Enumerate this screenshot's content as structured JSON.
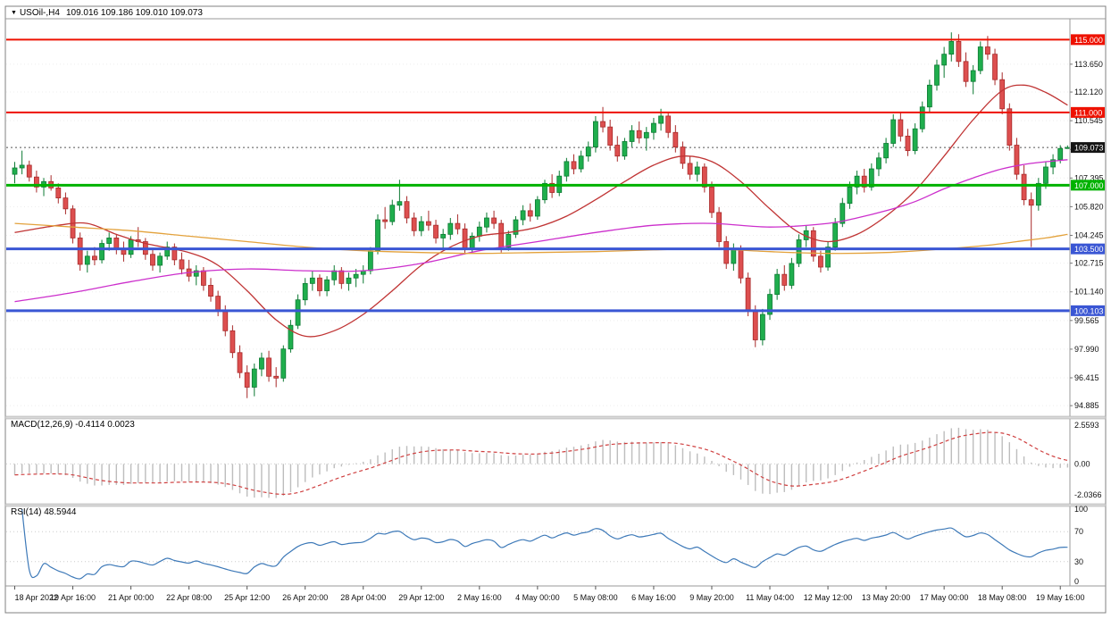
{
  "header": {
    "symbol_period": "USOil-,H4",
    "ohlc": "109.016 109.186 109.010 109.073"
  },
  "colors": {
    "bull": "#1fae4d",
    "bull_border": "#0d7a33",
    "bear": "#dd4f4f",
    "bear_border": "#a82a2a",
    "ma_fast": "#c03434",
    "ma_mid": "#cc2fcc",
    "ma_slow": "#e3a23c",
    "line_red": "#ee1100",
    "line_green": "#00b200",
    "line_blue": "#3a56d4",
    "price_label_bg": "#141414",
    "macd_hist": "#bdbdbd",
    "macd_signal": "#cf4040",
    "rsi_line": "#3d79b8",
    "grid": "#ededed",
    "axis_text": "#111111",
    "frame": "#808080"
  },
  "chart_data": {
    "type": "candlestick",
    "symbol": "USOil-",
    "timeframe": "H4",
    "bars_per_label": 8,
    "x_labels": [
      "18 Apr 2022",
      "19 Apr 16:00",
      "21 Apr 00:00",
      "22 Apr 08:00",
      "25 Apr 12:00",
      "26 Apr 20:00",
      "28 Apr 04:00",
      "29 Apr 12:00",
      "2 May 16:00",
      "4 May 00:00",
      "5 May 08:00",
      "6 May 16:00",
      "9 May 20:00",
      "11 May 04:00",
      "12 May 12:00",
      "13 May 20:00",
      "17 May 00:00",
      "18 May 08:00",
      "19 May 16:00"
    ],
    "price_axis": {
      "min": 94.5,
      "max": 116.0,
      "tick_labels": [
        "113.650",
        "112.120",
        "110.545",
        "108.970",
        "107.395",
        "105.820",
        "104.245",
        "102.715",
        "101.140",
        "99.565",
        "97.990",
        "96.415",
        "94.885"
      ]
    },
    "current_price": {
      "value": 109.073,
      "label": "109.073"
    },
    "current_bar": {
      "open": 109.016,
      "high": 109.186,
      "low": 109.01,
      "close": 109.073
    },
    "horizontal_lines": [
      {
        "price": 115.0,
        "label": "115.000",
        "color": "#ee1100",
        "width": 2
      },
      {
        "price": 111.0,
        "label": "111.000",
        "color": "#ee1100",
        "width": 2
      },
      {
        "price": 107.0,
        "label": "107.000",
        "color": "#00b200",
        "width": 3
      },
      {
        "price": 103.5,
        "label": "103.500",
        "color": "#3a56d4",
        "width": 3
      },
      {
        "price": 100.103,
        "label": "100.103",
        "color": "#3a56d4",
        "width": 3
      }
    ],
    "candles": [
      [
        107.6,
        108.28,
        107.1,
        107.95
      ],
      [
        107.95,
        108.9,
        107.6,
        108.1
      ],
      [
        108.1,
        108.35,
        107.2,
        107.45
      ],
      [
        107.45,
        107.8,
        106.6,
        106.9
      ],
      [
        106.9,
        107.4,
        106.4,
        107.2
      ],
      [
        107.2,
        107.55,
        106.7,
        106.85
      ],
      [
        106.85,
        107.1,
        106.0,
        106.3
      ],
      [
        106.3,
        106.6,
        105.4,
        105.7
      ],
      [
        105.7,
        105.9,
        103.8,
        104.1
      ],
      [
        104.1,
        104.4,
        102.3,
        102.65
      ],
      [
        102.65,
        103.4,
        102.2,
        103.1
      ],
      [
        103.1,
        103.6,
        102.6,
        102.9
      ],
      [
        102.9,
        104.0,
        102.7,
        103.8
      ],
      [
        103.8,
        104.4,
        103.4,
        104.1
      ],
      [
        104.1,
        104.3,
        103.2,
        103.5
      ],
      [
        103.5,
        103.9,
        102.8,
        103.2
      ],
      [
        103.2,
        104.2,
        103.0,
        104.0
      ],
      [
        104.0,
        104.7,
        103.6,
        103.9
      ],
      [
        103.9,
        104.1,
        102.9,
        103.2
      ],
      [
        103.2,
        103.5,
        102.3,
        102.6
      ],
      [
        102.6,
        103.3,
        102.2,
        103.1
      ],
      [
        103.1,
        103.9,
        102.9,
        103.6
      ],
      [
        103.6,
        103.8,
        102.6,
        102.9
      ],
      [
        102.9,
        103.3,
        102.1,
        102.4
      ],
      [
        102.4,
        102.9,
        101.7,
        102.0
      ],
      [
        102.0,
        102.6,
        101.5,
        102.3
      ],
      [
        102.3,
        102.5,
        101.2,
        101.5
      ],
      [
        101.5,
        101.9,
        100.6,
        100.9
      ],
      [
        100.9,
        101.2,
        99.8,
        100.1
      ],
      [
        100.1,
        100.4,
        98.7,
        99.0
      ],
      [
        99.0,
        99.3,
        97.5,
        97.8
      ],
      [
        97.8,
        98.2,
        96.4,
        96.7
      ],
      [
        96.7,
        97.1,
        95.3,
        95.9
      ],
      [
        95.9,
        97.2,
        95.4,
        96.9
      ],
      [
        96.9,
        97.8,
        96.5,
        97.5
      ],
      [
        97.5,
        97.9,
        96.2,
        96.5
      ],
      [
        96.5,
        97.0,
        95.9,
        96.4
      ],
      [
        96.4,
        98.2,
        96.2,
        98.0
      ],
      [
        98.0,
        99.6,
        97.8,
        99.3
      ],
      [
        99.3,
        101.0,
        99.1,
        100.7
      ],
      [
        100.7,
        101.9,
        100.4,
        101.6
      ],
      [
        101.6,
        102.3,
        101.2,
        101.9
      ],
      [
        101.9,
        102.1,
        100.9,
        101.2
      ],
      [
        101.2,
        102.0,
        100.9,
        101.8
      ],
      [
        101.8,
        102.6,
        101.5,
        102.3
      ],
      [
        102.3,
        102.5,
        101.3,
        101.6
      ],
      [
        101.6,
        102.2,
        101.2,
        101.9
      ],
      [
        101.9,
        102.4,
        101.4,
        102.1
      ],
      [
        102.1,
        102.6,
        101.6,
        102.3
      ],
      [
        102.3,
        103.6,
        102.1,
        103.4
      ],
      [
        103.4,
        105.4,
        103.2,
        105.1
      ],
      [
        105.1,
        105.8,
        104.6,
        105.0
      ],
      [
        105.0,
        106.2,
        104.8,
        105.9
      ],
      [
        105.9,
        107.3,
        105.6,
        106.1
      ],
      [
        106.1,
        106.4,
        104.9,
        105.2
      ],
      [
        105.2,
        105.5,
        104.2,
        104.5
      ],
      [
        104.5,
        105.3,
        104.2,
        105.0
      ],
      [
        105.0,
        105.6,
        104.5,
        104.8
      ],
      [
        104.8,
        105.1,
        103.8,
        104.1
      ],
      [
        104.1,
        104.6,
        103.5,
        104.3
      ],
      [
        104.3,
        105.2,
        104.0,
        104.9
      ],
      [
        104.9,
        105.4,
        104.3,
        104.6
      ],
      [
        104.6,
        104.9,
        103.2,
        103.5
      ],
      [
        103.5,
        104.4,
        103.3,
        104.2
      ],
      [
        104.2,
        105.0,
        103.9,
        104.7
      ],
      [
        104.7,
        105.5,
        104.4,
        105.2
      ],
      [
        105.2,
        105.6,
        104.6,
        104.9
      ],
      [
        104.9,
        105.1,
        103.3,
        103.6
      ],
      [
        103.6,
        104.5,
        103.4,
        104.3
      ],
      [
        104.3,
        105.3,
        104.1,
        105.1
      ],
      [
        105.1,
        105.9,
        104.8,
        105.6
      ],
      [
        105.6,
        106.0,
        105.0,
        105.3
      ],
      [
        105.3,
        106.4,
        105.1,
        106.2
      ],
      [
        106.2,
        107.3,
        106.0,
        107.1
      ],
      [
        107.1,
        107.6,
        106.3,
        106.6
      ],
      [
        106.6,
        107.8,
        106.4,
        107.5
      ],
      [
        107.5,
        108.5,
        107.2,
        108.3
      ],
      [
        108.3,
        108.7,
        107.6,
        107.9
      ],
      [
        107.9,
        108.9,
        107.7,
        108.6
      ],
      [
        108.6,
        109.4,
        108.3,
        109.1
      ],
      [
        109.1,
        110.8,
        108.8,
        110.5
      ],
      [
        110.5,
        111.3,
        109.9,
        110.2
      ],
      [
        110.2,
        110.6,
        108.9,
        109.2
      ],
      [
        109.2,
        109.7,
        108.3,
        108.6
      ],
      [
        108.6,
        109.6,
        108.4,
        109.4
      ],
      [
        109.4,
        110.3,
        109.1,
        110.0
      ],
      [
        110.0,
        110.5,
        109.3,
        109.6
      ],
      [
        109.6,
        110.2,
        108.9,
        109.9
      ],
      [
        109.9,
        110.7,
        109.5,
        110.4
      ],
      [
        110.4,
        111.2,
        110.0,
        110.8
      ],
      [
        110.8,
        111.0,
        109.6,
        109.9
      ],
      [
        109.9,
        110.3,
        108.8,
        109.1
      ],
      [
        109.1,
        109.4,
        107.9,
        108.2
      ],
      [
        108.2,
        108.6,
        107.3,
        107.6
      ],
      [
        107.6,
        108.3,
        107.2,
        108.0
      ],
      [
        108.0,
        108.2,
        106.6,
        106.9
      ],
      [
        106.9,
        107.2,
        105.2,
        105.5
      ],
      [
        105.5,
        105.8,
        103.6,
        103.9
      ],
      [
        103.9,
        104.2,
        102.4,
        102.7
      ],
      [
        102.7,
        103.8,
        102.3,
        103.5
      ],
      [
        103.5,
        103.7,
        101.6,
        101.9
      ],
      [
        101.9,
        102.2,
        99.8,
        100.1
      ],
      [
        100.1,
        100.4,
        98.1,
        98.5
      ],
      [
        98.5,
        100.2,
        98.2,
        99.9
      ],
      [
        99.9,
        101.3,
        99.6,
        101.0
      ],
      [
        101.0,
        102.4,
        100.7,
        102.1
      ],
      [
        102.1,
        102.6,
        101.2,
        101.5
      ],
      [
        101.5,
        103.0,
        101.3,
        102.7
      ],
      [
        102.7,
        104.3,
        102.5,
        104.0
      ],
      [
        104.0,
        104.8,
        103.6,
        104.5
      ],
      [
        104.5,
        104.7,
        102.8,
        103.1
      ],
      [
        103.1,
        103.4,
        102.2,
        102.5
      ],
      [
        102.5,
        103.9,
        102.3,
        103.6
      ],
      [
        103.6,
        105.2,
        103.4,
        104.9
      ],
      [
        104.9,
        106.3,
        104.7,
        106.0
      ],
      [
        106.0,
        107.2,
        105.7,
        106.9
      ],
      [
        106.9,
        107.8,
        106.5,
        107.5
      ],
      [
        107.5,
        107.9,
        106.6,
        106.9
      ],
      [
        106.9,
        108.2,
        106.7,
        107.9
      ],
      [
        107.9,
        108.8,
        107.5,
        108.5
      ],
      [
        108.5,
        109.6,
        108.2,
        109.3
      ],
      [
        109.3,
        110.9,
        109.1,
        110.6
      ],
      [
        110.6,
        111.0,
        109.4,
        109.7
      ],
      [
        109.7,
        110.1,
        108.6,
        108.9
      ],
      [
        108.9,
        110.4,
        108.7,
        110.1
      ],
      [
        110.1,
        111.6,
        109.9,
        111.3
      ],
      [
        111.3,
        112.8,
        111.0,
        112.5
      ],
      [
        112.5,
        113.9,
        112.2,
        113.6
      ],
      [
        113.6,
        114.6,
        112.9,
        114.2
      ],
      [
        114.2,
        115.4,
        113.8,
        114.9
      ],
      [
        114.9,
        115.3,
        113.5,
        113.8
      ],
      [
        113.8,
        114.3,
        112.4,
        112.7
      ],
      [
        112.7,
        113.6,
        112.0,
        113.3
      ],
      [
        113.3,
        114.9,
        113.1,
        114.6
      ],
      [
        114.6,
        115.2,
        113.9,
        114.2
      ],
      [
        114.2,
        114.5,
        112.5,
        112.8
      ],
      [
        112.8,
        113.2,
        110.9,
        111.2
      ],
      [
        111.2,
        111.5,
        108.9,
        109.2
      ],
      [
        109.2,
        109.6,
        107.3,
        107.6
      ],
      [
        107.6,
        108.1,
        105.9,
        106.2
      ],
      [
        106.2,
        106.6,
        103.6,
        105.9
      ],
      [
        105.9,
        107.4,
        105.6,
        107.1
      ],
      [
        107.1,
        108.3,
        106.8,
        108.0
      ],
      [
        108.0,
        108.7,
        107.6,
        108.4
      ],
      [
        108.4,
        109.2,
        108.2,
        109.02
      ],
      [
        109.016,
        109.186,
        109.01,
        109.073
      ]
    ],
    "moving_averages": [
      {
        "name": "ma-fast-red",
        "color": "#c03434",
        "points": [
          [
            0,
            104.4
          ],
          [
            6,
            104.8
          ],
          [
            10,
            104.9
          ],
          [
            14,
            104.3
          ],
          [
            18,
            103.8
          ],
          [
            24,
            103.3
          ],
          [
            28,
            102.6
          ],
          [
            32,
            101.2
          ],
          [
            36,
            99.6
          ],
          [
            40,
            98.7
          ],
          [
            44,
            99.0
          ],
          [
            48,
            99.9
          ],
          [
            52,
            101.2
          ],
          [
            56,
            102.6
          ],
          [
            60,
            103.6
          ],
          [
            64,
            104.2
          ],
          [
            68,
            104.4
          ],
          [
            72,
            104.7
          ],
          [
            76,
            105.3
          ],
          [
            80,
            106.2
          ],
          [
            84,
            107.2
          ],
          [
            88,
            108.1
          ],
          [
            92,
            108.6
          ],
          [
            96,
            108.3
          ],
          [
            100,
            107.2
          ],
          [
            104,
            105.7
          ],
          [
            108,
            104.4
          ],
          [
            112,
            103.9
          ],
          [
            116,
            104.3
          ],
          [
            120,
            105.3
          ],
          [
            124,
            106.7
          ],
          [
            128,
            108.6
          ],
          [
            132,
            110.6
          ],
          [
            136,
            112.2
          ],
          [
            139,
            112.5
          ],
          [
            142,
            112.1
          ],
          [
            145,
            111.4
          ]
        ]
      },
      {
        "name": "ma-mid-magenta",
        "color": "#cc2fcc",
        "points": [
          [
            0,
            100.6
          ],
          [
            8,
            101.1
          ],
          [
            16,
            101.7
          ],
          [
            24,
            102.2
          ],
          [
            32,
            102.4
          ],
          [
            40,
            102.3
          ],
          [
            48,
            102.3
          ],
          [
            56,
            102.7
          ],
          [
            64,
            103.4
          ],
          [
            72,
            103.9
          ],
          [
            80,
            104.4
          ],
          [
            88,
            104.8
          ],
          [
            96,
            104.9
          ],
          [
            104,
            104.7
          ],
          [
            112,
            104.9
          ],
          [
            116,
            105.2
          ],
          [
            120,
            105.6
          ],
          [
            124,
            106.1
          ],
          [
            128,
            106.8
          ],
          [
            132,
            107.4
          ],
          [
            136,
            107.9
          ],
          [
            140,
            108.2
          ],
          [
            145,
            108.4
          ]
        ]
      },
      {
        "name": "ma-slow-orange",
        "color": "#e3a23c",
        "points": [
          [
            0,
            104.9
          ],
          [
            8,
            104.7
          ],
          [
            16,
            104.5
          ],
          [
            24,
            104.2
          ],
          [
            32,
            103.9
          ],
          [
            40,
            103.6
          ],
          [
            48,
            103.4
          ],
          [
            56,
            103.3
          ],
          [
            64,
            103.25
          ],
          [
            72,
            103.3
          ],
          [
            80,
            103.35
          ],
          [
            88,
            103.45
          ],
          [
            96,
            103.5
          ],
          [
            104,
            103.35
          ],
          [
            112,
            103.25
          ],
          [
            120,
            103.3
          ],
          [
            128,
            103.5
          ],
          [
            134,
            103.7
          ],
          [
            138,
            103.9
          ],
          [
            142,
            104.1
          ],
          [
            145,
            104.3
          ]
        ]
      }
    ],
    "indicators": {
      "macd": {
        "label": "MACD(12,26,9)",
        "values_text": "-0.4114 0.0023",
        "fast": 12,
        "slow": 26,
        "signal": 9,
        "axis_labels": [
          "2.5593",
          "0.00",
          "-2.0366"
        ],
        "scale_max": 2.9,
        "scale_min": -2.5
      },
      "rsi": {
        "label": "RSI(14)",
        "value_text": "48.5944",
        "period": 14,
        "axis_labels": [
          "100",
          "70",
          "30",
          "0"
        ],
        "levels": [
          70,
          30
        ],
        "scale_max": 100,
        "scale_min": 0
      }
    }
  }
}
